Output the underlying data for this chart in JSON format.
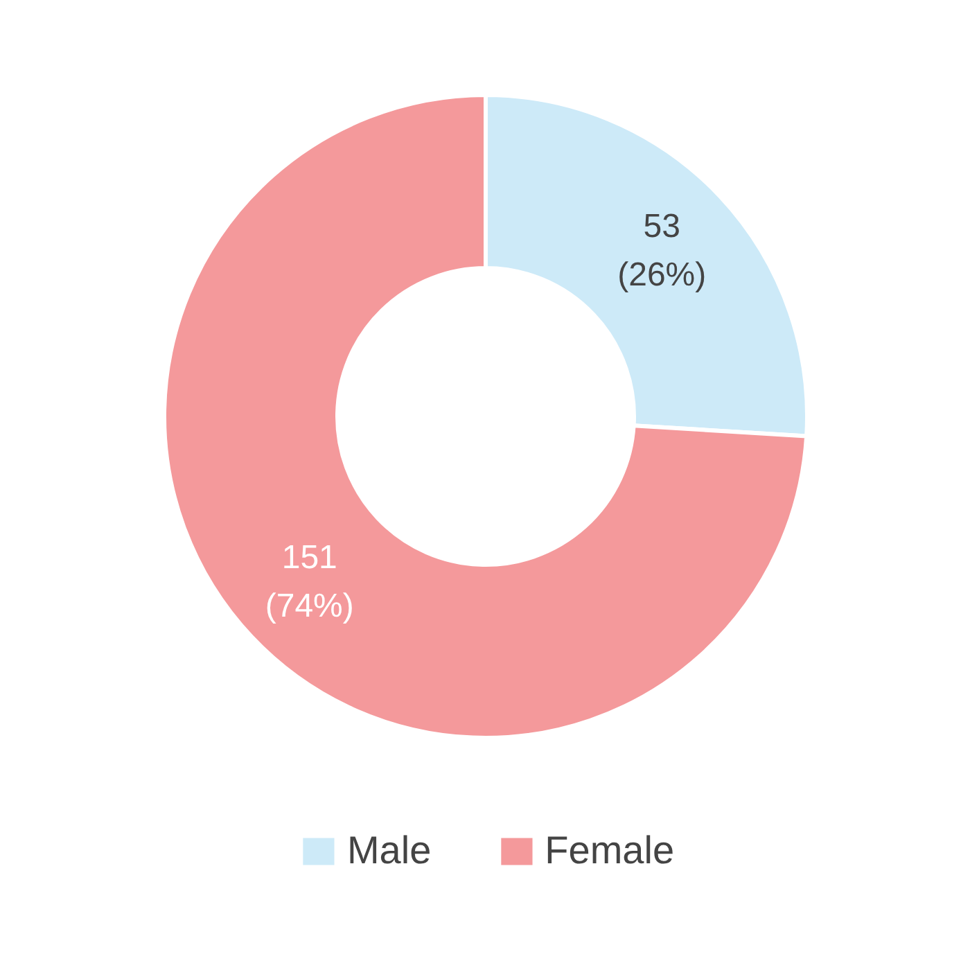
{
  "chart_data": {
    "type": "donut",
    "categories": [
      "Male",
      "Female"
    ],
    "values": [
      53,
      151
    ],
    "colors": [
      "#cdeaf8",
      "#f4999b"
    ],
    "value_labels": [
      "53\n(26%)",
      "151\n(74%)"
    ],
    "legend": "bottom"
  }
}
